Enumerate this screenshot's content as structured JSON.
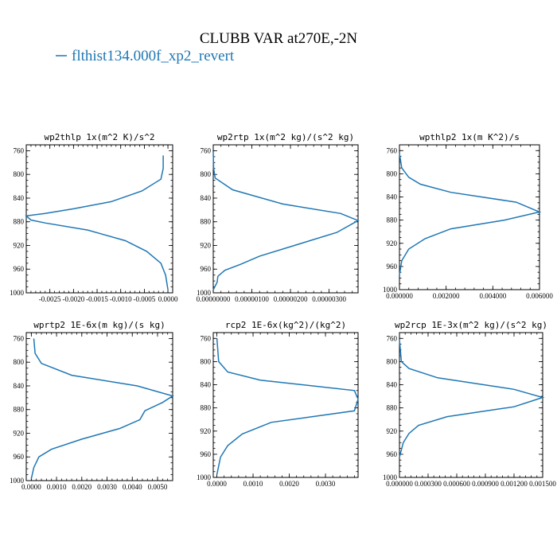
{
  "figure": {
    "title": "CLUBB VAR at270E,-2N",
    "legend": "flthist134.000f_xp2_revert",
    "line_color": "#1f77b4"
  },
  "chart_data": [
    {
      "type": "line",
      "title": "wp2thlp   1x(m^2 K)/s^2",
      "xlim": [
        -0.003,
        0.0001
      ],
      "xticks": [
        -0.0025,
        -0.002,
        -0.0015,
        -0.001,
        -0.0005,
        0.0
      ],
      "xtick_labels": [
        "-0.0025",
        "-0.0020",
        "-0.0015",
        "-0.0010",
        "-0.0005",
        "0.0000"
      ],
      "ylim": [
        1000,
        750
      ],
      "yticks": [
        760,
        800,
        840,
        880,
        920,
        960,
        1000
      ],
      "ytick_labels": [
        "760",
        "800",
        "840",
        "880",
        "920",
        "960",
        "1000"
      ],
      "x": [
        -0.0001,
        -0.0001,
        -0.00015,
        -0.00055,
        -0.0012,
        -0.002,
        -0.0026,
        -0.003,
        -0.0029,
        -0.0026,
        -0.0017,
        -0.0009,
        -0.00045,
        -0.00015,
        -5e-05,
        -0.0
      ],
      "y": [
        768,
        790,
        808,
        828,
        846,
        858,
        866,
        870,
        877,
        882,
        894,
        912,
        930,
        950,
        970,
        995
      ]
    },
    {
      "type": "line",
      "title": "wp2rtp   1x(m^2 kg)/(s^2 kg)",
      "xlim": [
        0,
        3.75e-06
      ],
      "xticks": [
        0,
        1e-06,
        2e-06,
        3e-06
      ],
      "xtick_labels": [
        "0.00000000",
        "0.00000100",
        "0.00000200",
        "0.00000300"
      ],
      "ylim": [
        1000,
        750
      ],
      "yticks": [
        760,
        800,
        840,
        880,
        920,
        960,
        1000
      ],
      "ytick_labels": [
        "760",
        "800",
        "840",
        "880",
        "920",
        "960",
        "1000"
      ],
      "x": [
        0,
        1e-08,
        5e-08,
        5e-07,
        1.8e-06,
        3.3e-06,
        3.75e-06,
        3.2e-06,
        2.2e-06,
        1.2e-06,
        7e-07,
        3e-07,
        1.2e-07,
        1e-07,
        0
      ],
      "y": [
        762,
        790,
        806,
        826,
        850,
        866,
        878,
        898,
        918,
        938,
        952,
        962,
        972,
        982,
        995
      ]
    },
    {
      "type": "line",
      "title": "wpthlp2   1x(m K^2)/s",
      "xlim": [
        0,
        0.006
      ],
      "xticks": [
        0,
        0.002,
        0.004,
        0.006
      ],
      "xtick_labels": [
        "0.000000",
        "0.002000",
        "0.004000",
        "0.006000"
      ],
      "ylim": [
        1000,
        750
      ],
      "yticks": [
        760,
        800,
        840,
        880,
        920,
        960,
        1000
      ],
      "ytick_labels": [
        "760",
        "800",
        "840",
        "880",
        "920",
        "960",
        "1000"
      ],
      "x": [
        0,
        0.0001,
        0.0004,
        0.0009,
        0.0022,
        0.005,
        0.006,
        0.0045,
        0.0022,
        0.0011,
        0.0004,
        0.0001,
        0
      ],
      "y": [
        765,
        790,
        806,
        818,
        832,
        849,
        866,
        880,
        895,
        912,
        930,
        950,
        975
      ]
    },
    {
      "type": "line",
      "title": "wprtp2   1E-6x(m kg)/(s kg)",
      "xlim": [
        -0.0002,
        0.0056
      ],
      "xticks": [
        0,
        0.001,
        0.002,
        0.003,
        0.004,
        0.005
      ],
      "xtick_labels": [
        "0.0000",
        "0.0010",
        "0.0020",
        "0.0030",
        "0.0040",
        "0.0050"
      ],
      "ylim": [
        1000,
        750
      ],
      "yticks": [
        760,
        800,
        840,
        880,
        920,
        960,
        1000
      ],
      "ytick_labels": [
        "760",
        "800",
        "840",
        "880",
        "920",
        "960",
        "1000"
      ],
      "x": [
        0.0001,
        0.00015,
        0.0004,
        0.0016,
        0.0042,
        0.0056,
        0.0052,
        0.0045,
        0.0043,
        0.0035,
        0.002,
        0.0008,
        0.0003,
        0.0001,
        0
      ],
      "y": [
        760,
        785,
        802,
        822,
        840,
        857,
        868,
        882,
        897,
        912,
        930,
        947,
        960,
        978,
        997
      ]
    },
    {
      "type": "line",
      "title": "rcp2   1E-6x(kg^2)/(kg^2)",
      "xlim": [
        -0.0001,
        0.0039
      ],
      "xticks": [
        0,
        0.001,
        0.002,
        0.003
      ],
      "xtick_labels": [
        "0.0000",
        "0.0010",
        "0.0020",
        "0.0030"
      ],
      "ylim": [
        1000,
        750
      ],
      "yticks": [
        760,
        800,
        840,
        880,
        920,
        960,
        1000
      ],
      "ytick_labels": [
        "760",
        "800",
        "840",
        "880",
        "920",
        "960",
        "1000"
      ],
      "x": [
        0,
        5e-05,
        0.0003,
        0.0012,
        0.0038,
        0.0039,
        0.0038,
        0.0015,
        0.0007,
        0.0003,
        0.0001,
        0
      ],
      "y": [
        760,
        800,
        818,
        832,
        850,
        865,
        885,
        905,
        925,
        945,
        965,
        995
      ]
    },
    {
      "type": "line",
      "title": "wp2rcp   1E-3x(m^2 kg)/(s^2 kg)",
      "xlim": [
        0,
        0.0015
      ],
      "xticks": [
        0,
        0.0003,
        0.0006,
        0.0009,
        0.0012,
        0.0015
      ],
      "xtick_labels": [
        "0.000000",
        "0.000300",
        "0.000600",
        "0.000900",
        "0.001200",
        "0.001500"
      ],
      "ylim": [
        1000,
        750
      ],
      "yticks": [
        760,
        800,
        840,
        880,
        920,
        960,
        1000
      ],
      "ytick_labels": [
        "760",
        "800",
        "840",
        "880",
        "920",
        "960",
        "1000"
      ],
      "x": [
        0,
        2e-05,
        0.0001,
        0.0004,
        0.0012,
        0.0015,
        0.0012,
        0.0005,
        0.0002,
        0.0001,
        4e-05,
        0
      ],
      "y": [
        762,
        800,
        812,
        828,
        848,
        862,
        878,
        895,
        910,
        924,
        940,
        965
      ]
    }
  ]
}
